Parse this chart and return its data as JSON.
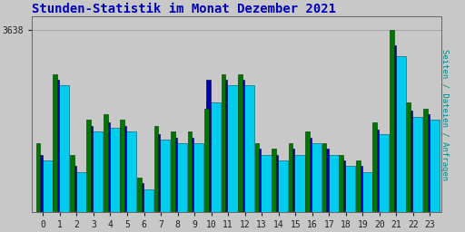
{
  "title": "Stunden-Statistik im Monat Dezember 2021",
  "title_color": "#0000bb",
  "background_color": "#c8c8c8",
  "plot_bg_color": "#c8c8c8",
  "ylabel": "Seiten / Dateien / Anfragen",
  "ylabel_color": "#008888",
  "hours": [
    0,
    1,
    2,
    3,
    4,
    5,
    6,
    7,
    8,
    9,
    10,
    11,
    12,
    13,
    14,
    15,
    16,
    17,
    18,
    19,
    20,
    21,
    22,
    23
  ],
  "seiten": [
    3540,
    3600,
    3530,
    3560,
    3565,
    3560,
    3510,
    3555,
    3550,
    3550,
    3570,
    3600,
    3600,
    3540,
    3535,
    3540,
    3550,
    3540,
    3530,
    3525,
    3558,
    3638,
    3575,
    3570
  ],
  "dateien": [
    3530,
    3595,
    3520,
    3555,
    3558,
    3555,
    3505,
    3548,
    3545,
    3545,
    3595,
    3595,
    3595,
    3535,
    3530,
    3535,
    3545,
    3535,
    3525,
    3520,
    3552,
    3625,
    3568,
    3565
  ],
  "anfragen": [
    3525,
    3590,
    3515,
    3550,
    3553,
    3550,
    3500,
    3543,
    3540,
    3540,
    3575,
    3590,
    3590,
    3530,
    3525,
    3530,
    3540,
    3530,
    3520,
    3515,
    3548,
    3615,
    3563,
    3560
  ],
  "ymin": 3480,
  "ymax": 3650,
  "ytick_val": 3638,
  "bar_width": 0.28,
  "seiten_color": "#007700",
  "dateien_color": "#0000aa",
  "anfragen_color": "#00ccee",
  "edge_seiten": "#003300",
  "edge_dateien": "#000044",
  "edge_anfragen": "#005566",
  "font_size_title": 10,
  "font_size_axis": 7,
  "font_size_ylabel": 6.5
}
